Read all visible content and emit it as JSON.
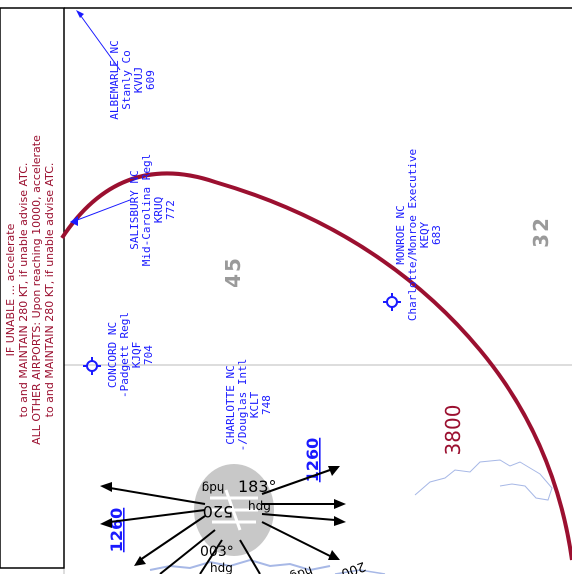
{
  "notes": {
    "line1": "IF UNABLE ... accelerate",
    "line2": "to and MAINTAIN 280 KT, if unable advise ATC.",
    "line3": "ALL OTHER AIRPORTS: Upon reaching 10000, accelerate",
    "line4": "to and MAINTAIN 280 KT, if unable advise ATC."
  },
  "airports": [
    {
      "city": "ALBEMARLE NC",
      "name": "Stanly Co",
      "ident": "KVUJ",
      "elev": "609"
    },
    {
      "city": "SALISBURY NC",
      "name": "Mid-Carolina Regl",
      "ident": "KRUQ",
      "elev": "772"
    },
    {
      "city": "CONCORD NC",
      "name": "-Padgett Regl",
      "ident": "KJQF",
      "elev": "704"
    },
    {
      "city": "CHARLOTTE NC",
      "name": "-/Douglas Intl",
      "ident": "KCLT",
      "elev": "748"
    },
    {
      "city": "MONROE NC",
      "name": "Charlotte/Monroe Executive",
      "ident": "KEQY",
      "elev": "683"
    }
  ],
  "altitudes": {
    "mea_top": "1260",
    "mea_left": "1260",
    "mora": "3800"
  },
  "grid": {
    "grid45": "45",
    "grid32": "32"
  },
  "headings": {
    "h183": "183°",
    "h003": "003°",
    "h520": "520",
    "hdg": "hdg",
    "hdg2": "hdg",
    "hdg3": "hdg",
    "hdg4": "hdg",
    "h200": "200"
  },
  "colors": {
    "nav_blue": "#1a1aff",
    "arc_red": "#9b1030",
    "grid_grey": "#9a9a9a",
    "water": "#a7b8e6"
  }
}
